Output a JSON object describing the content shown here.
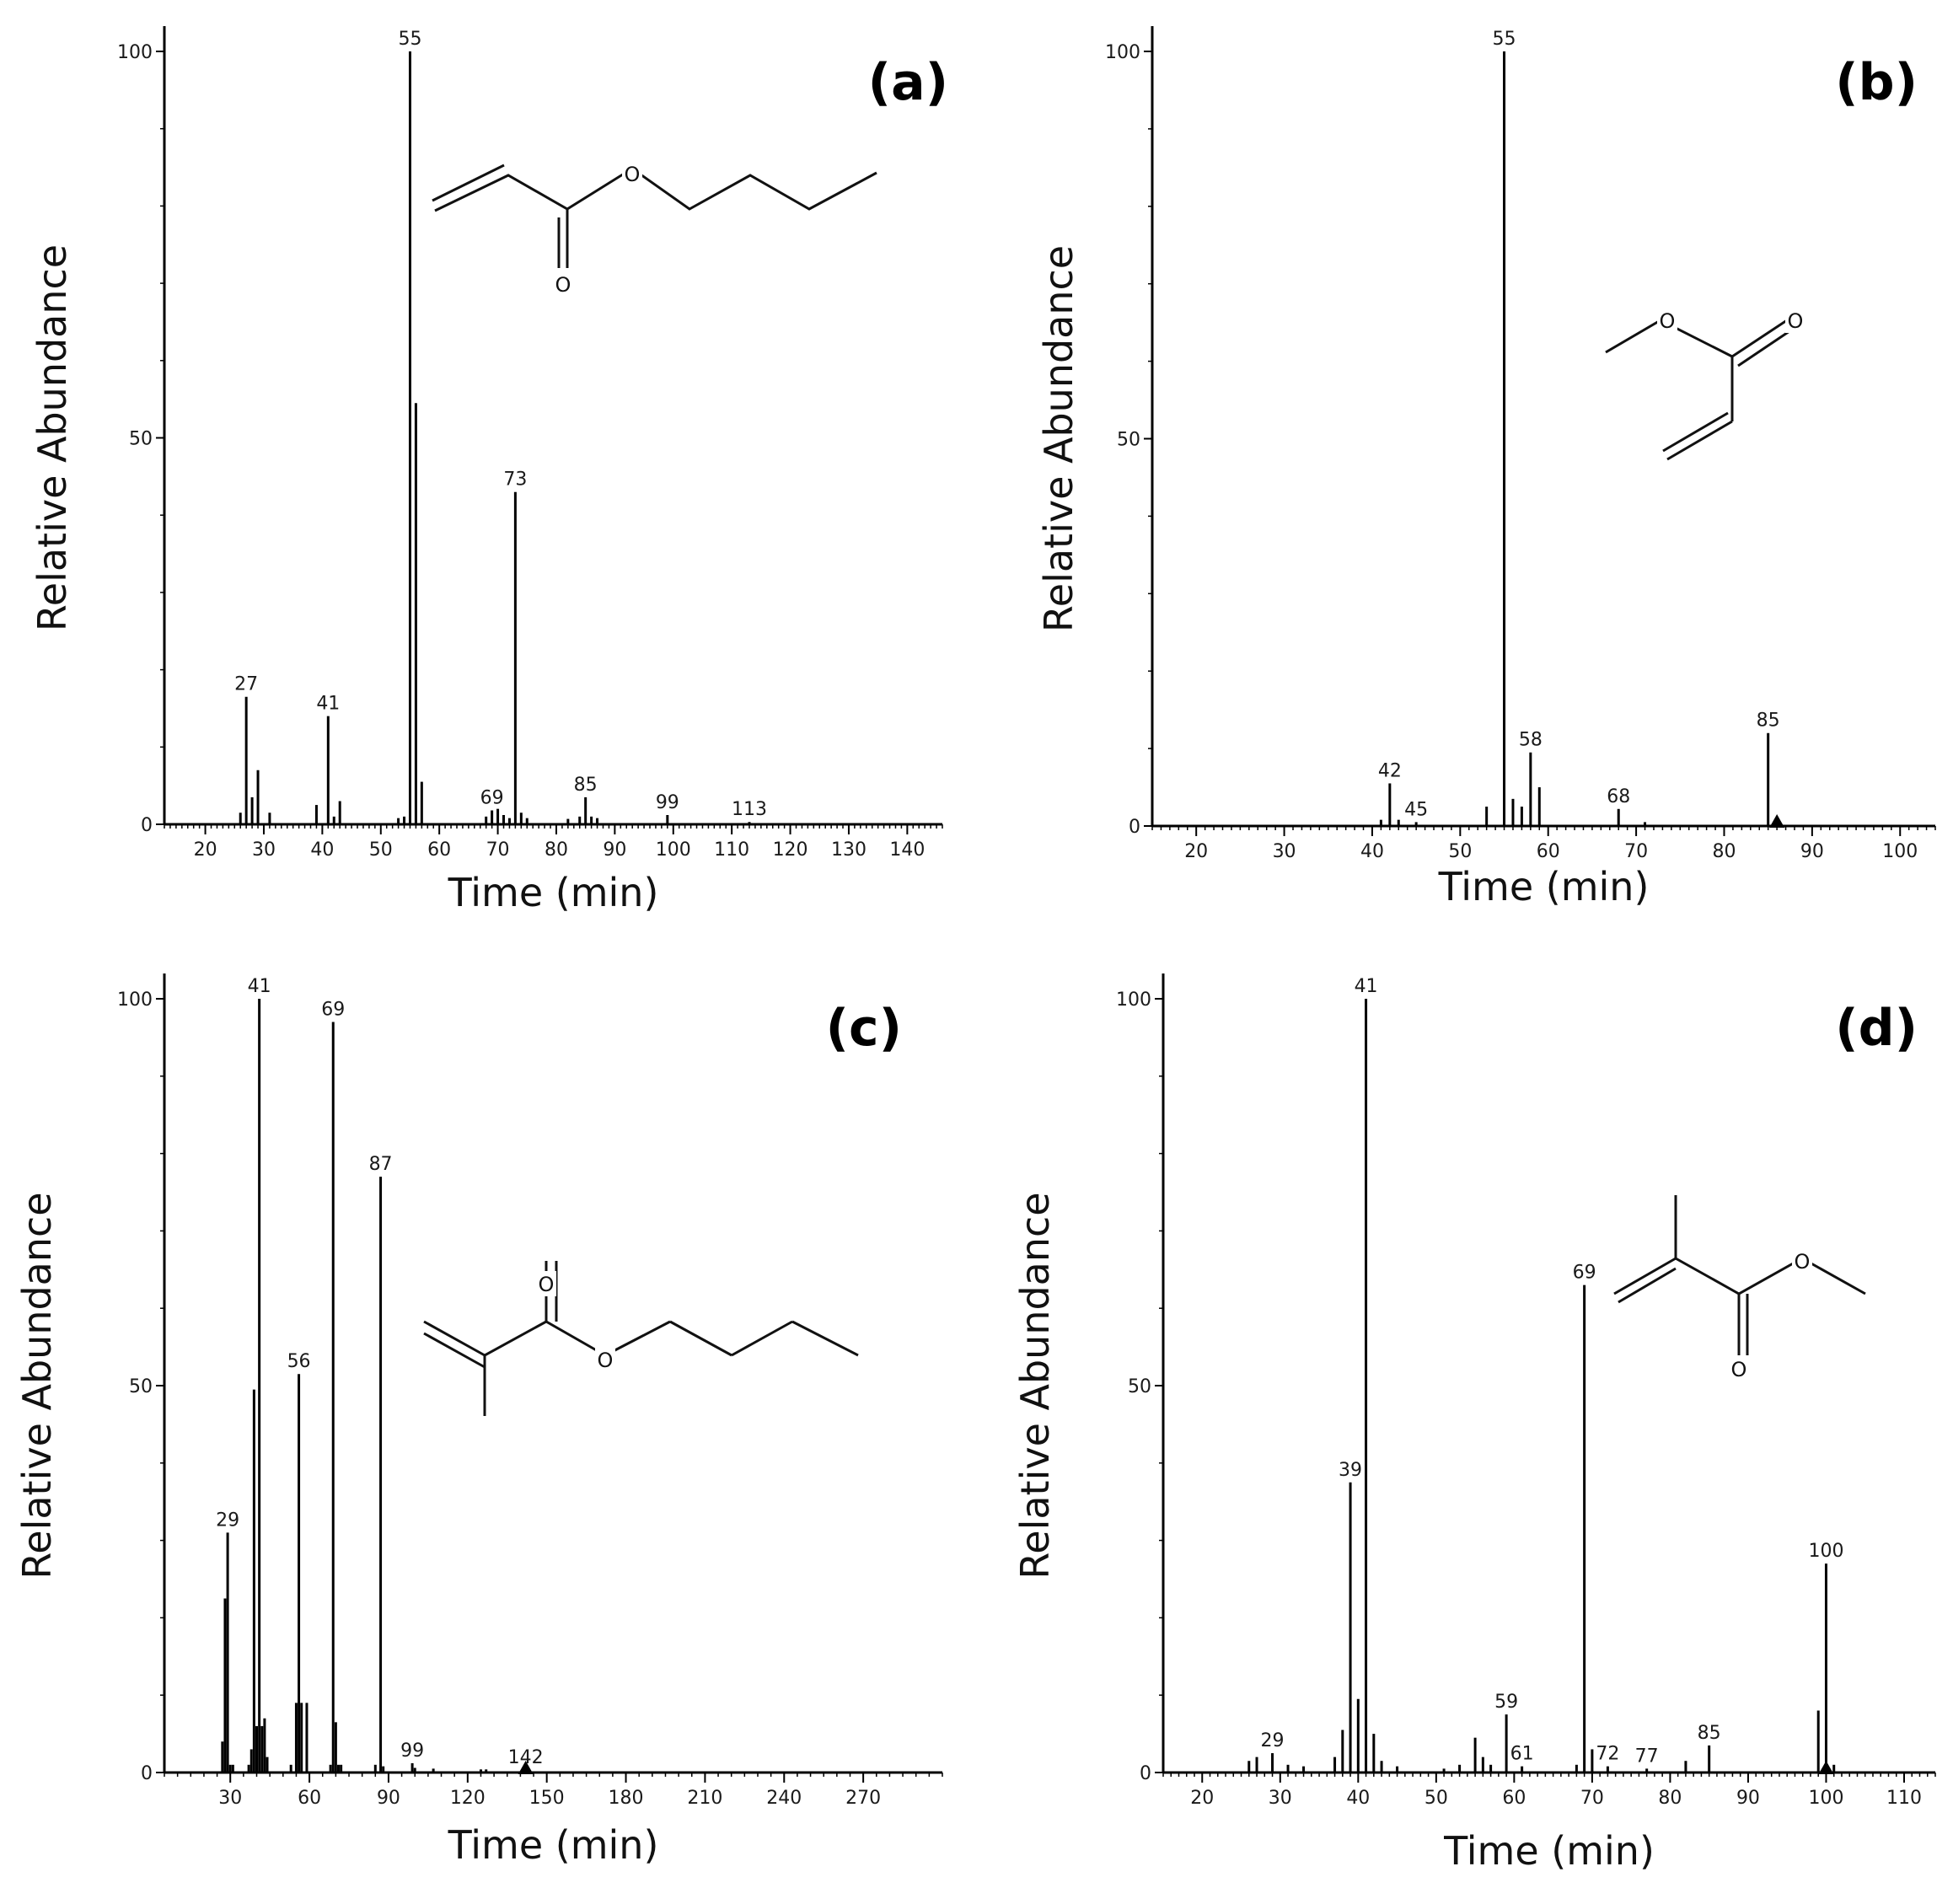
{
  "chart_data": [
    {
      "type": "bar",
      "panel_label": "(a)",
      "xlabel": "Time (min)",
      "ylabel": "Relative Abundance",
      "xlim": [
        13,
        146
      ],
      "ylim": [
        0,
        100
      ],
      "x_ticks": [
        20,
        30,
        40,
        50,
        60,
        70,
        80,
        90,
        100,
        110,
        120,
        130,
        140
      ],
      "y_ticks": [
        0,
        50,
        100
      ],
      "grid": false,
      "peaks": [
        {
          "x": 26,
          "y": 1.5
        },
        {
          "x": 27,
          "y": 16.5,
          "label": "27"
        },
        {
          "x": 28,
          "y": 3.5
        },
        {
          "x": 29,
          "y": 7
        },
        {
          "x": 31,
          "y": 1.5
        },
        {
          "x": 39,
          "y": 2.5
        },
        {
          "x": 41,
          "y": 14,
          "label": "41"
        },
        {
          "x": 42,
          "y": 1
        },
        {
          "x": 43,
          "y": 3
        },
        {
          "x": 53,
          "y": 0.8
        },
        {
          "x": 54,
          "y": 1
        },
        {
          "x": 55,
          "y": 100,
          "label": "55"
        },
        {
          "x": 56,
          "y": 54.5
        },
        {
          "x": 57,
          "y": 5.5
        },
        {
          "x": 68,
          "y": 1
        },
        {
          "x": 69,
          "y": 1.8,
          "label": "69"
        },
        {
          "x": 70,
          "y": 2
        },
        {
          "x": 71,
          "y": 1.2
        },
        {
          "x": 72,
          "y": 0.8
        },
        {
          "x": 73,
          "y": 43,
          "label": "73"
        },
        {
          "x": 74,
          "y": 1.5
        },
        {
          "x": 75,
          "y": 0.8
        },
        {
          "x": 82,
          "y": 0.7
        },
        {
          "x": 84,
          "y": 1
        },
        {
          "x": 85,
          "y": 3.5,
          "label": "85"
        },
        {
          "x": 86,
          "y": 1
        },
        {
          "x": 87,
          "y": 0.8
        },
        {
          "x": 99,
          "y": 1.2,
          "label": "99"
        },
        {
          "x": 113,
          "y": 0.3,
          "label": "113"
        }
      ],
      "structure_atoms": [
        "O",
        "O"
      ]
    },
    {
      "type": "bar",
      "panel_label": "(b)",
      "xlabel": "Time (min)",
      "ylabel": "Relative Abundance",
      "xlim": [
        15,
        104
      ],
      "ylim": [
        0,
        100
      ],
      "x_ticks": [
        20,
        30,
        40,
        50,
        60,
        70,
        80,
        90,
        100
      ],
      "y_ticks": [
        0,
        50,
        100
      ],
      "grid": false,
      "peaks": [
        {
          "x": 41,
          "y": 0.8
        },
        {
          "x": 42,
          "y": 5.5,
          "label": "42"
        },
        {
          "x": 43,
          "y": 0.8
        },
        {
          "x": 45,
          "y": 0.5,
          "label": "45"
        },
        {
          "x": 53,
          "y": 2.5
        },
        {
          "x": 55,
          "y": 100,
          "label": "55"
        },
        {
          "x": 56,
          "y": 3.5
        },
        {
          "x": 57,
          "y": 2.5
        },
        {
          "x": 58,
          "y": 9.5,
          "label": "58"
        },
        {
          "x": 59,
          "y": 5
        },
        {
          "x": 68,
          "y": 2.2,
          "label": "68"
        },
        {
          "x": 71,
          "y": 0.5
        },
        {
          "x": 85,
          "y": 12,
          "label": "85"
        },
        {
          "x": 86,
          "y": 1
        }
      ],
      "marker_x": 86,
      "structure_atoms": [
        "O",
        "O"
      ]
    },
    {
      "type": "bar",
      "panel_label": "(c)",
      "xlabel": "Time (min)",
      "ylabel": "Relative Abundance",
      "xlim": [
        5,
        300
      ],
      "ylim": [
        0,
        100
      ],
      "x_ticks": [
        30,
        60,
        90,
        120,
        150,
        180,
        210,
        240,
        270
      ],
      "y_ticks": [
        0,
        50,
        100
      ],
      "grid": false,
      "peaks": [
        {
          "x": 27,
          "y": 4
        },
        {
          "x": 28,
          "y": 22.5
        },
        {
          "x": 29,
          "y": 31,
          "label": "29"
        },
        {
          "x": 30,
          "y": 1
        },
        {
          "x": 31,
          "y": 1
        },
        {
          "x": 37,
          "y": 1
        },
        {
          "x": 38,
          "y": 3
        },
        {
          "x": 39,
          "y": 49.5
        },
        {
          "x": 40,
          "y": 6
        },
        {
          "x": 41,
          "y": 100,
          "label": "41"
        },
        {
          "x": 42,
          "y": 6
        },
        {
          "x": 43,
          "y": 7
        },
        {
          "x": 44,
          "y": 2
        },
        {
          "x": 53,
          "y": 1
        },
        {
          "x": 55,
          "y": 9
        },
        {
          "x": 56,
          "y": 51.5,
          "label": "56"
        },
        {
          "x": 57,
          "y": 9
        },
        {
          "x": 59,
          "y": 9
        },
        {
          "x": 68,
          "y": 1
        },
        {
          "x": 69,
          "y": 97,
          "label": "69"
        },
        {
          "x": 70,
          "y": 6.5
        },
        {
          "x": 71,
          "y": 1
        },
        {
          "x": 72,
          "y": 1
        },
        {
          "x": 85,
          "y": 1
        },
        {
          "x": 87,
          "y": 77,
          "label": "87"
        },
        {
          "x": 88,
          "y": 0.8
        },
        {
          "x": 99,
          "y": 1.2,
          "label": "99"
        },
        {
          "x": 100,
          "y": 0.6
        },
        {
          "x": 107,
          "y": 0.5
        },
        {
          "x": 125,
          "y": 0.4
        },
        {
          "x": 127,
          "y": 0.4
        },
        {
          "x": 142,
          "y": 0.3,
          "label": "142"
        }
      ],
      "marker_x": 142,
      "structure_atoms": [
        "O",
        "O"
      ]
    },
    {
      "type": "bar",
      "panel_label": "(d)",
      "xlabel": "Time (min)",
      "ylabel": "Relative Abundance",
      "xlim": [
        15,
        114
      ],
      "ylim": [
        0,
        100
      ],
      "x_ticks": [
        20,
        30,
        40,
        50,
        60,
        70,
        80,
        90,
        100,
        110
      ],
      "y_ticks": [
        0,
        50,
        100
      ],
      "grid": false,
      "peaks": [
        {
          "x": 26,
          "y": 1.5
        },
        {
          "x": 27,
          "y": 2
        },
        {
          "x": 29,
          "y": 2.5,
          "label": "29"
        },
        {
          "x": 31,
          "y": 1
        },
        {
          "x": 33,
          "y": 0.8
        },
        {
          "x": 37,
          "y": 2
        },
        {
          "x": 38,
          "y": 5.5
        },
        {
          "x": 39,
          "y": 37.5,
          "label": "39"
        },
        {
          "x": 40,
          "y": 9.5
        },
        {
          "x": 41,
          "y": 100,
          "label": "41"
        },
        {
          "x": 42,
          "y": 5
        },
        {
          "x": 43,
          "y": 1.5
        },
        {
          "x": 45,
          "y": 0.8
        },
        {
          "x": 51,
          "y": 0.5
        },
        {
          "x": 53,
          "y": 1
        },
        {
          "x": 55,
          "y": 4.5
        },
        {
          "x": 56,
          "y": 2
        },
        {
          "x": 57,
          "y": 1
        },
        {
          "x": 59,
          "y": 7.5,
          "label": "59"
        },
        {
          "x": 61,
          "y": 0.8,
          "label": "61"
        },
        {
          "x": 68,
          "y": 1
        },
        {
          "x": 69,
          "y": 63,
          "label": "69"
        },
        {
          "x": 70,
          "y": 3
        },
        {
          "x": 72,
          "y": 0.8,
          "label": "72"
        },
        {
          "x": 77,
          "y": 0.5,
          "label": "77"
        },
        {
          "x": 82,
          "y": 1.5
        },
        {
          "x": 85,
          "y": 3.5,
          "label": "85"
        },
        {
          "x": 99,
          "y": 8
        },
        {
          "x": 100,
          "y": 27,
          "label": "100"
        },
        {
          "x": 101,
          "y": 1
        }
      ],
      "marker_x": 100,
      "structure_atoms": [
        "O",
        "O"
      ]
    }
  ]
}
